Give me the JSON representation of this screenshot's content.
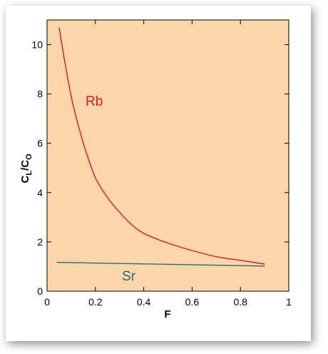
{
  "chart_data": {
    "type": "line",
    "xlabel": "F",
    "ylabel_main": "C",
    "ylabel_sub1": "L",
    "ylabel_mid": "/C",
    "ylabel_sub2": "O",
    "xlim": [
      0,
      1
    ],
    "ylim": [
      0,
      11
    ],
    "xticks": [
      0,
      0.2,
      0.4,
      0.6,
      0.8,
      1
    ],
    "xtick_labels": [
      "0",
      "0.2",
      "0.4",
      "0.6",
      "0.8",
      "1"
    ],
    "yticks": [
      0,
      2,
      4,
      6,
      8,
      10
    ],
    "ytick_labels": [
      "0",
      "2",
      "4",
      "6",
      "8",
      "10"
    ],
    "grid": false,
    "plot_background": "#FDD5AA",
    "series": [
      {
        "name": "Rb",
        "color": "#E0191B",
        "x": [
          0.05,
          0.07,
          0.1,
          0.13,
          0.16,
          0.2,
          0.25,
          0.3,
          0.35,
          0.4,
          0.5,
          0.6,
          0.7,
          0.8,
          0.9
        ],
        "y": [
          10.7,
          9.5,
          7.9,
          6.7,
          5.7,
          4.6,
          3.8,
          3.2,
          2.7,
          2.35,
          1.95,
          1.65,
          1.4,
          1.25,
          1.1
        ]
      },
      {
        "name": "Sr",
        "color": "#1F6F78",
        "x": [
          0.04,
          0.9
        ],
        "y": [
          1.17,
          1.02
        ]
      }
    ]
  }
}
